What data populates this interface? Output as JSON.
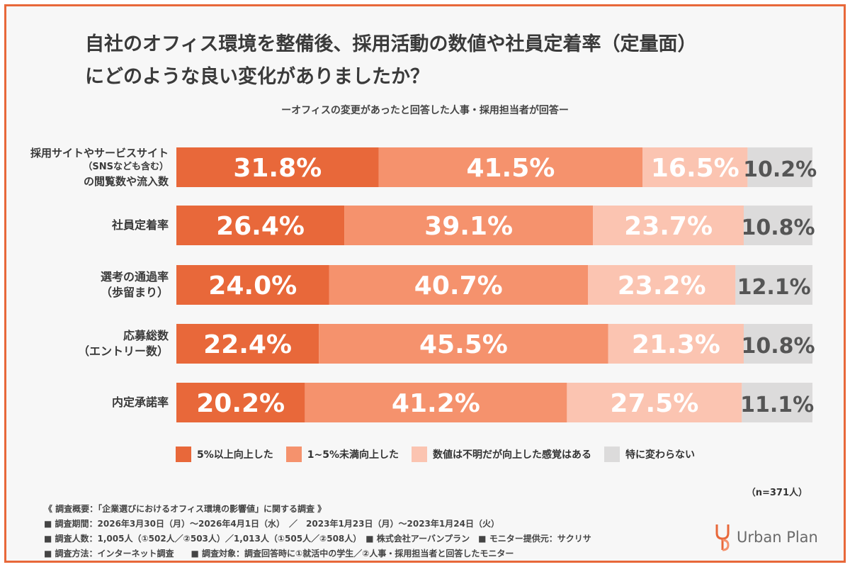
{
  "header": {
    "title_line1": "自社のオフィス環境を整備後、採用活動の数値や社員定着率（定量面）",
    "title_line2": "にどのような良い変化がありましたか？",
    "subtitle": "ーオフィスの変更があったと回答した人事・採用担当者が回答ー"
  },
  "chart_data": {
    "type": "bar",
    "orientation": "horizontal",
    "stacked": true,
    "unit": "%",
    "categories": [
      "採用サイトやサービスサイト（SNSなども含む）の閲覧数や流入数",
      "社員定着率",
      "選考の通過率（歩留まり）",
      "応募総数（エントリー数）",
      "内定承諾率"
    ],
    "category_lines": [
      [
        "採用サイトやサービスサイト",
        "（SNSなども含む）",
        "の閲覧数や流入数"
      ],
      [
        "社員定着率"
      ],
      [
        "選考の通過率",
        "（歩留まり）"
      ],
      [
        "応募総数",
        "（エントリー数）"
      ],
      [
        "内定承諾率"
      ]
    ],
    "series": [
      {
        "name": "5%以上向上した",
        "color": "#e8683a",
        "values": [
          31.8,
          26.4,
          24.0,
          22.4,
          20.2
        ],
        "labels": [
          "31.8%",
          "26.4%",
          "24.0%",
          "22.4%",
          "20.2%"
        ]
      },
      {
        "name": "1~5%未満向上した",
        "color": "#f5926d",
        "values": [
          41.5,
          39.1,
          40.7,
          45.5,
          41.2
        ],
        "labels": [
          "41.5%",
          "39.1%",
          "40.7%",
          "45.5%",
          "41.2%"
        ]
      },
      {
        "name": "数値は不明だが向上した感覚はある",
        "color": "#fbc4b1",
        "values": [
          16.5,
          23.7,
          23.2,
          21.3,
          27.5
        ],
        "labels": [
          "16.5%",
          "23.7%",
          "23.2%",
          "21.3%",
          "27.5%"
        ]
      },
      {
        "name": "特に変わらない",
        "color": "#dcdbdb",
        "values": [
          10.2,
          10.8,
          12.1,
          10.8,
          11.1
        ],
        "labels": [
          "10.2%",
          "10.8%",
          "12.1%",
          "10.8%",
          "11.1%"
        ]
      }
    ],
    "legend_position": "bottom",
    "grid": false
  },
  "sample_size": "（n=371人）",
  "notes": {
    "overview": "《 調査概要：「企業選びにおけるオフィス環境の影響値」に関する調査 》",
    "period": "■ 調査期間：2026年3月30日（月）～2026年4月1日（水）　／　2023年1月23日（月）～2023年1月24日（火）",
    "respondents": "■ 調査人数：1,005人（①502人／②503人）／1,013人（①505人／②508人）　■ 株式会社アーバンプラン　■ モニター提供元：サクリサ",
    "method": "■ 調査方法：インターネット調査　　■ 調査対象：調査回答時に①就活中の学生／②人事・採用担当者と回答したモニター"
  },
  "brand": {
    "name": "Urban Plan",
    "icon": "urban-plan-logo-icon"
  }
}
